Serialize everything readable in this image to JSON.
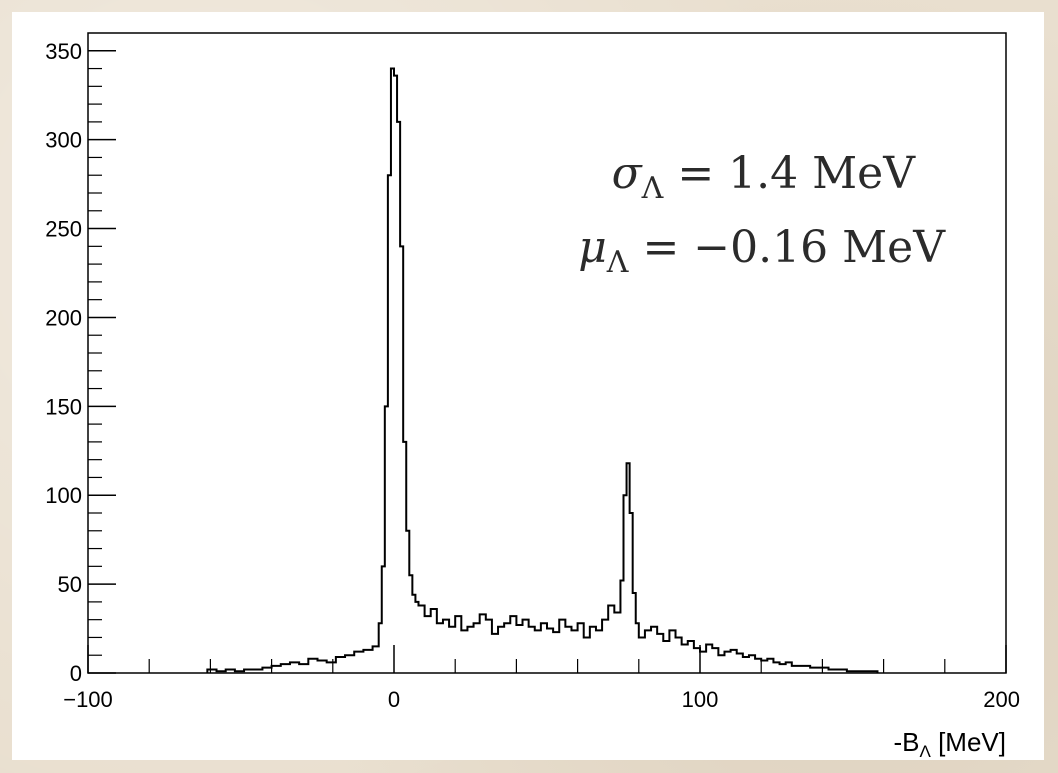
{
  "chart_data": {
    "type": "histogram",
    "xlabel": "-B",
    "xlabel_subscript": "Λ",
    "xlabel_unit": "[MeV]",
    "ylabel": "",
    "xlim": [
      -100,
      200
    ],
    "ylim": [
      0,
      360
    ],
    "x_ticks": [
      "−100",
      "0",
      "100",
      "200"
    ],
    "y_ticks": [
      "0",
      "50",
      "100",
      "150",
      "200",
      "250",
      "300",
      "350"
    ],
    "bin_width": 1,
    "annotations": [
      {
        "symbol": "σ",
        "subscript": "Λ",
        "text": " = 1.4 MeV"
      },
      {
        "symbol": "μ",
        "subscript": "Λ",
        "text": " = −0.16 MeV"
      }
    ],
    "grid": false,
    "legend": "none",
    "series": [
      {
        "x": [
          -61,
          -58,
          -55,
          -52,
          -49,
          -46,
          -43,
          -40,
          -37,
          -34,
          -31,
          -28,
          -25,
          -22,
          -19,
          -16,
          -13,
          -10,
          -7,
          -5,
          -4,
          -3,
          -2,
          -1,
          0,
          1,
          2,
          3,
          4,
          5,
          6,
          7,
          8,
          10,
          12,
          14,
          16,
          18,
          20,
          22,
          24,
          26,
          28,
          30,
          32,
          34,
          36,
          38,
          40,
          42,
          44,
          46,
          48,
          50,
          52,
          54,
          56,
          58,
          60,
          62,
          64,
          66,
          68,
          70,
          72,
          74,
          75,
          76,
          77,
          78,
          79,
          80,
          82,
          84,
          86,
          88,
          90,
          92,
          94,
          96,
          98,
          100,
          102,
          104,
          106,
          108,
          110,
          112,
          114,
          116,
          118,
          120,
          122,
          124,
          126,
          128,
          130,
          133,
          136,
          139,
          142,
          145,
          148,
          151,
          154,
          157
        ],
        "values": [
          2,
          1,
          2,
          1,
          2,
          2,
          3,
          4,
          5,
          6,
          5,
          8,
          7,
          6,
          9,
          10,
          12,
          13,
          15,
          28,
          60,
          150,
          280,
          340,
          336,
          310,
          240,
          130,
          80,
          55,
          44,
          40,
          38,
          32,
          36,
          28,
          30,
          26,
          32,
          24,
          26,
          28,
          33,
          30,
          22,
          26,
          28,
          32,
          27,
          30,
          26,
          24,
          28,
          25,
          23,
          30,
          26,
          24,
          28,
          20,
          26,
          24,
          30,
          38,
          34,
          52,
          100,
          118,
          90,
          45,
          28,
          20,
          24,
          26,
          22,
          18,
          24,
          20,
          16,
          18,
          14,
          12,
          16,
          14,
          10,
          12,
          13,
          11,
          9,
          10,
          8,
          7,
          8,
          6,
          5,
          6,
          4,
          4,
          3,
          3,
          2,
          2,
          1,
          1,
          1,
          1
        ]
      }
    ]
  }
}
